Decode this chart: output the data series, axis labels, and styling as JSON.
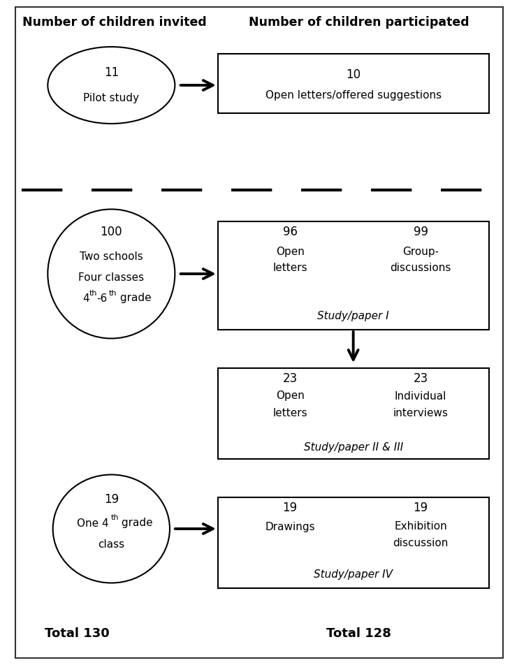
{
  "title_left": "Number of children invited",
  "title_right": "Number of children participated",
  "title_fontsize": 12.5,
  "total_left": "Total 130",
  "total_right": "Total 128",
  "total_fontsize": 13,
  "label_fontsize": 11,
  "number_fontsize": 12,
  "superscript_fontsize": 8
}
